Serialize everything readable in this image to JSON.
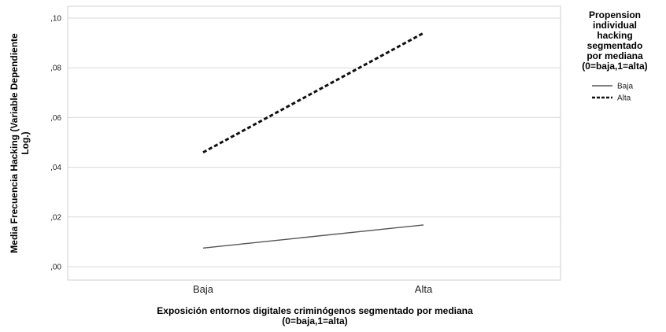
{
  "chart_data": {
    "type": "line",
    "categories": [
      "Baja",
      "Alta"
    ],
    "series": [
      {
        "name": "Baja",
        "values": [
          0.0075,
          0.0168
        ],
        "color": "#555555",
        "style": "solid"
      },
      {
        "name": "Alta",
        "values": [
          0.046,
          0.094
        ],
        "color": "#111111",
        "style": "dashed"
      }
    ],
    "ylim": [
      0,
      0.1
    ],
    "yticks": [
      0.0,
      0.02,
      0.04,
      0.06,
      0.08,
      0.1
    ],
    "ytick_labels": [
      ",00",
      ",02",
      ",04",
      ",06",
      ",08",
      ",10"
    ],
    "ylabel_lines": [
      "Media Frecuencia Hacking (Variable Dependiente",
      "Log.)"
    ],
    "xlabel_lines": [
      "Exposición entornos digitales criminógenos segmentado por mediana",
      "(0=baja,1=alta)"
    ],
    "legend_title_lines": [
      "Propension",
      "individual",
      "hacking",
      "segmentado",
      "por mediana",
      "(0=baja,1=alta)"
    ],
    "legend_position": "right",
    "grid": true
  }
}
